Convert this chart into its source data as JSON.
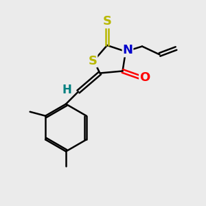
{
  "bg_color": "#ebebeb",
  "atom_colors": {
    "S": "#b8b800",
    "N": "#0000cc",
    "O": "#ff0000",
    "C": "#000000",
    "H_label": "#008080"
  },
  "bond_color": "#000000",
  "bond_width": 1.8,
  "font_size_atom": 13
}
